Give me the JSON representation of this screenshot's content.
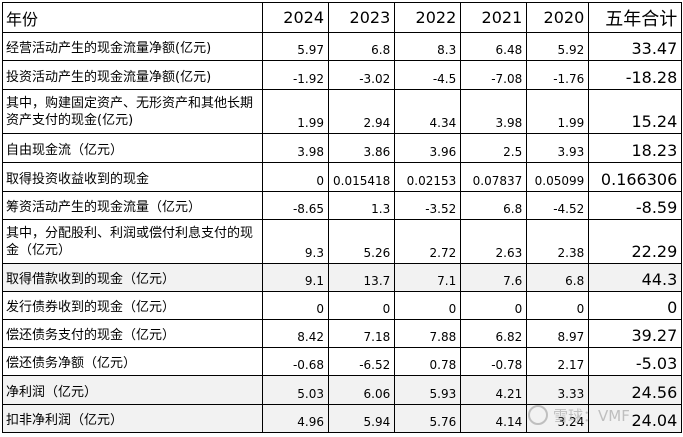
{
  "table": {
    "header": [
      "年份",
      "2024",
      "2023",
      "2022",
      "2021",
      "2020",
      "五年合计"
    ],
    "rows": [
      {
        "label": "经营活动产生的现金流量净额(亿元)",
        "values": [
          "5.97",
          "6.8",
          "8.3",
          "6.48",
          "5.92"
        ],
        "total": "33.47"
      },
      {
        "label": "投资活动产生的现金流量净额(亿元)",
        "values": [
          "-1.92",
          "-3.02",
          "-4.5",
          "-7.08",
          "-1.76"
        ],
        "total": "-18.28"
      },
      {
        "label": "其中，购建固定资产、无形资产和其他长期资产支付的现金(亿元)",
        "values": [
          "1.99",
          "2.94",
          "4.34",
          "3.98",
          "1.99"
        ],
        "total": "15.24"
      },
      {
        "label": "自由现金流（亿元）",
        "values": [
          "3.98",
          "3.86",
          "3.96",
          "2.5",
          "3.93"
        ],
        "total": "18.23"
      },
      {
        "label": "取得投资收益收到的现金",
        "values": [
          "0",
          "0.015418",
          "0.02153",
          "0.07837",
          "0.05099"
        ],
        "total": "0.166306"
      },
      {
        "label": "筹资活动产生的现金流量（亿元）",
        "values": [
          "-8.65",
          "1.3",
          "-3.52",
          "6.8",
          "-4.52"
        ],
        "total": "-8.59"
      },
      {
        "label": "其中，分配股利、利润或偿付利息支付的现金（亿元）",
        "values": [
          "9.3",
          "5.26",
          "2.72",
          "2.63",
          "2.38"
        ],
        "total": "22.29"
      },
      {
        "label": "取得借款收到的现金（亿元）",
        "values": [
          "9.1",
          "13.7",
          "7.1",
          "7.6",
          "6.8"
        ],
        "total": "44.3"
      },
      {
        "label": "发行债券收到的现金（亿元）",
        "values": [
          "0",
          "0",
          "0",
          "0",
          "0"
        ],
        "total": "0"
      },
      {
        "label": "偿还债务支付的现金（亿元）",
        "values": [
          "8.42",
          "7.18",
          "7.88",
          "6.82",
          "8.97"
        ],
        "total": "39.27"
      },
      {
        "label": "偿还债务净额（亿元）",
        "values": [
          "-0.68",
          "-6.52",
          "0.78",
          "-0.78",
          "2.17"
        ],
        "total": "-5.03"
      },
      {
        "label": "净利润（亿元）",
        "values": [
          "5.03",
          "6.06",
          "5.93",
          "4.21",
          "3.33"
        ],
        "total": "24.56"
      },
      {
        "label": "扣非净利润（亿元）",
        "values": [
          "4.96",
          "5.94",
          "5.76",
          "4.14",
          "3.24"
        ],
        "total": "24.04"
      }
    ]
  },
  "watermark": {
    "text": "雪球：VMF"
  }
}
